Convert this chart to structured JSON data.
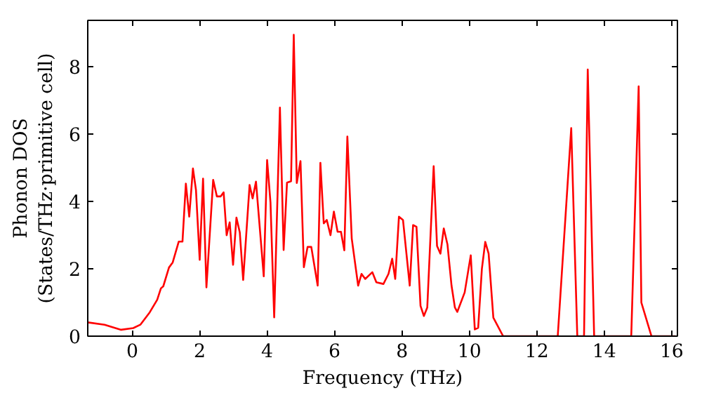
{
  "chart_data": {
    "type": "line",
    "xlabel": "Frequency (THz)",
    "ylabel": "Phonon DOS\n(States/THz·primitive cell)",
    "x": [
      -1.32,
      -0.82,
      -0.33,
      0.03,
      0.24,
      0.52,
      0.74,
      0.85,
      0.92,
      1.09,
      1.2,
      1.38,
      1.49,
      1.59,
      1.69,
      1.8,
      1.89,
      2.0,
      2.1,
      2.2,
      2.4,
      2.51,
      2.62,
      2.71,
      2.8,
      2.89,
      2.99,
      3.09,
      3.19,
      3.29,
      3.48,
      3.57,
      3.67,
      3.9,
      4.0,
      4.1,
      4.21,
      4.38,
      4.49,
      4.59,
      4.71,
      4.79,
      4.88,
      4.99,
      5.09,
      5.2,
      5.31,
      5.5,
      5.58,
      5.68,
      5.77,
      5.88,
      5.98,
      6.09,
      6.19,
      6.29,
      6.38,
      6.51,
      6.7,
      6.8,
      6.91,
      7.12,
      7.24,
      7.45,
      7.6,
      7.71,
      7.8,
      7.91,
      8.03,
      8.23,
      8.33,
      8.43,
      8.55,
      8.65,
      8.75,
      8.94,
      9.04,
      9.14,
      9.24,
      9.35,
      9.47,
      9.57,
      9.64,
      9.86,
      10.04,
      10.16,
      10.26,
      10.37,
      10.47,
      10.57,
      10.71,
      11.0,
      12.62,
      13.02,
      13.2,
      13.4,
      13.51,
      13.7,
      14.8,
      15.02,
      15.1,
      15.4,
      16.1
    ],
    "series": [
      {
        "color": "#ff0000",
        "values": [
          0.41,
          0.34,
          0.19,
          0.24,
          0.34,
          0.71,
          1.08,
          1.42,
          1.48,
          2.04,
          2.19,
          2.81,
          2.81,
          4.53,
          3.55,
          4.98,
          4.34,
          2.27,
          4.68,
          1.45,
          4.64,
          4.15,
          4.15,
          4.27,
          3.0,
          3.38,
          2.12,
          3.52,
          3.08,
          1.67,
          4.49,
          4.09,
          4.59,
          1.78,
          5.23,
          3.97,
          0.56,
          6.79,
          2.56,
          4.56,
          4.6,
          8.95,
          4.55,
          5.2,
          2.05,
          2.65,
          2.65,
          1.5,
          5.15,
          3.35,
          3.45,
          3.0,
          3.7,
          3.1,
          3.1,
          2.55,
          5.93,
          2.9,
          1.5,
          1.85,
          1.7,
          1.9,
          1.6,
          1.55,
          1.85,
          2.3,
          1.7,
          3.55,
          3.45,
          1.5,
          3.3,
          3.25,
          0.9,
          0.6,
          0.85,
          5.05,
          2.68,
          2.45,
          3.2,
          2.72,
          1.5,
          0.85,
          0.72,
          1.3,
          2.4,
          0.2,
          0.25,
          2.0,
          2.8,
          2.45,
          0.55,
          0,
          0,
          6.18,
          0,
          0,
          7.92,
          0,
          0,
          7.42,
          1.0,
          0,
          0
        ]
      }
    ],
    "xlim": [
      -1.32,
      16.17
    ],
    "ylim": [
      0,
      9.38
    ],
    "xticks": [
      0,
      2,
      4,
      6,
      8,
      10,
      12,
      14,
      16
    ],
    "yticks": [
      0,
      2,
      4,
      6,
      8
    ],
    "line_style": "solid"
  }
}
